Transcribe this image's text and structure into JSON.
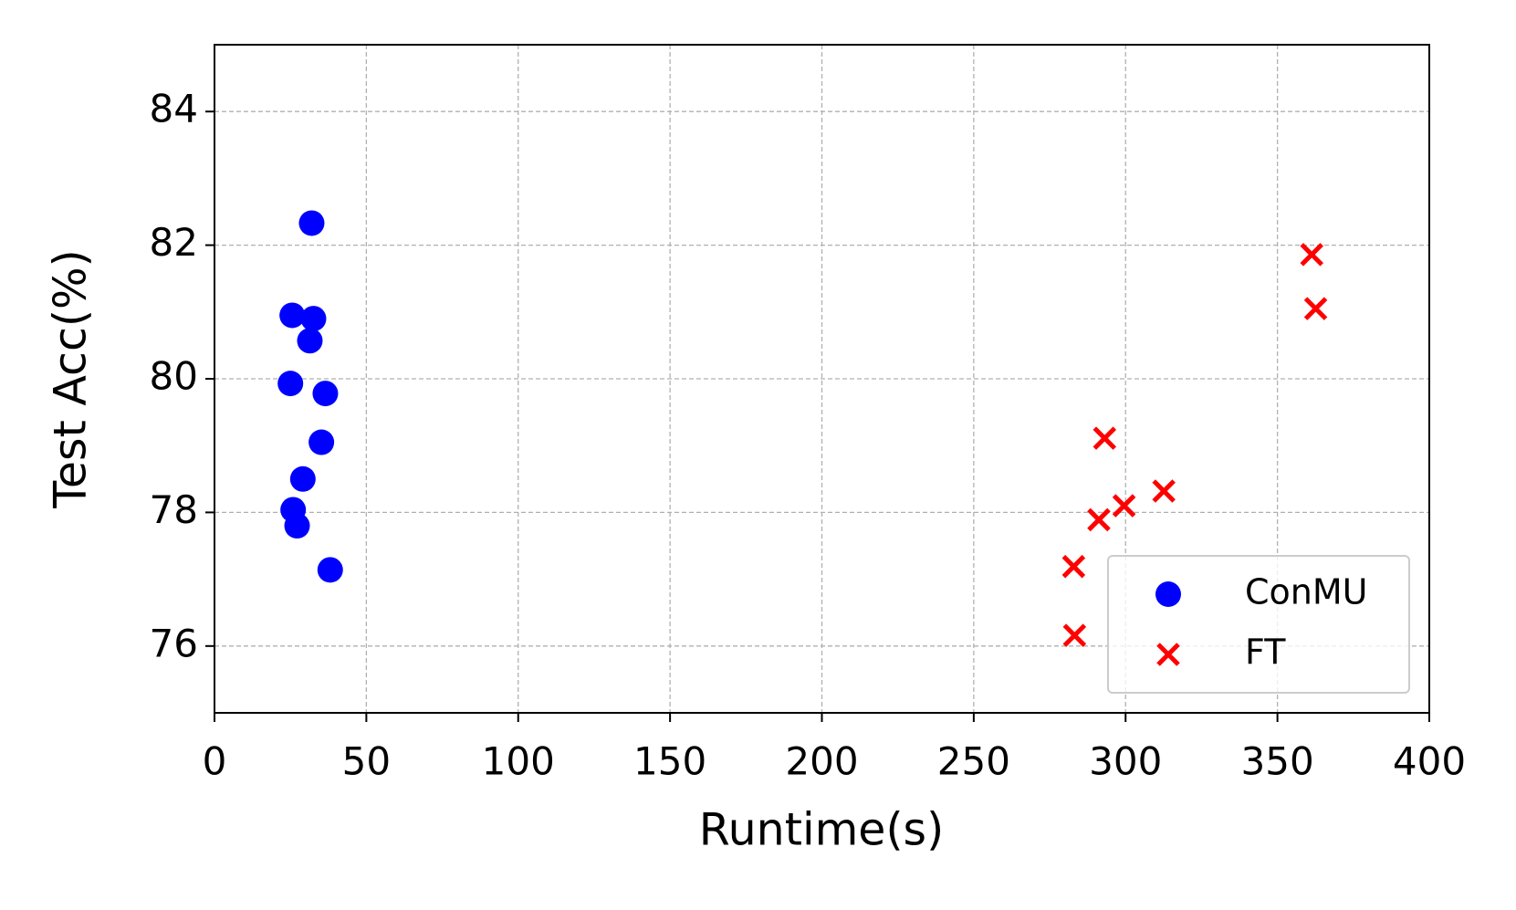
{
  "chart_data": {
    "type": "scatter",
    "xlabel": "Runtime(s)",
    "ylabel": "Test Acc(%)",
    "xlim": [
      0,
      400
    ],
    "ylim": [
      75,
      85
    ],
    "xticks": [
      0,
      50,
      100,
      150,
      200,
      250,
      300,
      350,
      400
    ],
    "yticks": [
      76,
      78,
      80,
      82,
      84
    ],
    "grid": true,
    "legend": "lower right",
    "series": [
      {
        "name": "ConMU",
        "color": "#0000ff",
        "marker": "circle",
        "x": [
          32,
          25.6,
          32.6,
          31.4,
          25,
          36.5,
          35.2,
          29.1,
          25.9,
          27.2,
          38.1
        ],
        "values": [
          82.33,
          80.95,
          80.9,
          80.57,
          79.93,
          79.78,
          79.05,
          78.5,
          78.04,
          77.8,
          77.14
        ]
      },
      {
        "name": "FT",
        "color": "#ff0000",
        "marker": "x",
        "x": [
          361.3,
          362.6,
          293.1,
          312.6,
          299.5,
          291.2,
          282.9,
          283.2
        ],
        "values": [
          81.86,
          81.05,
          79.11,
          78.32,
          78.1,
          77.89,
          77.19,
          76.16
        ]
      }
    ]
  }
}
